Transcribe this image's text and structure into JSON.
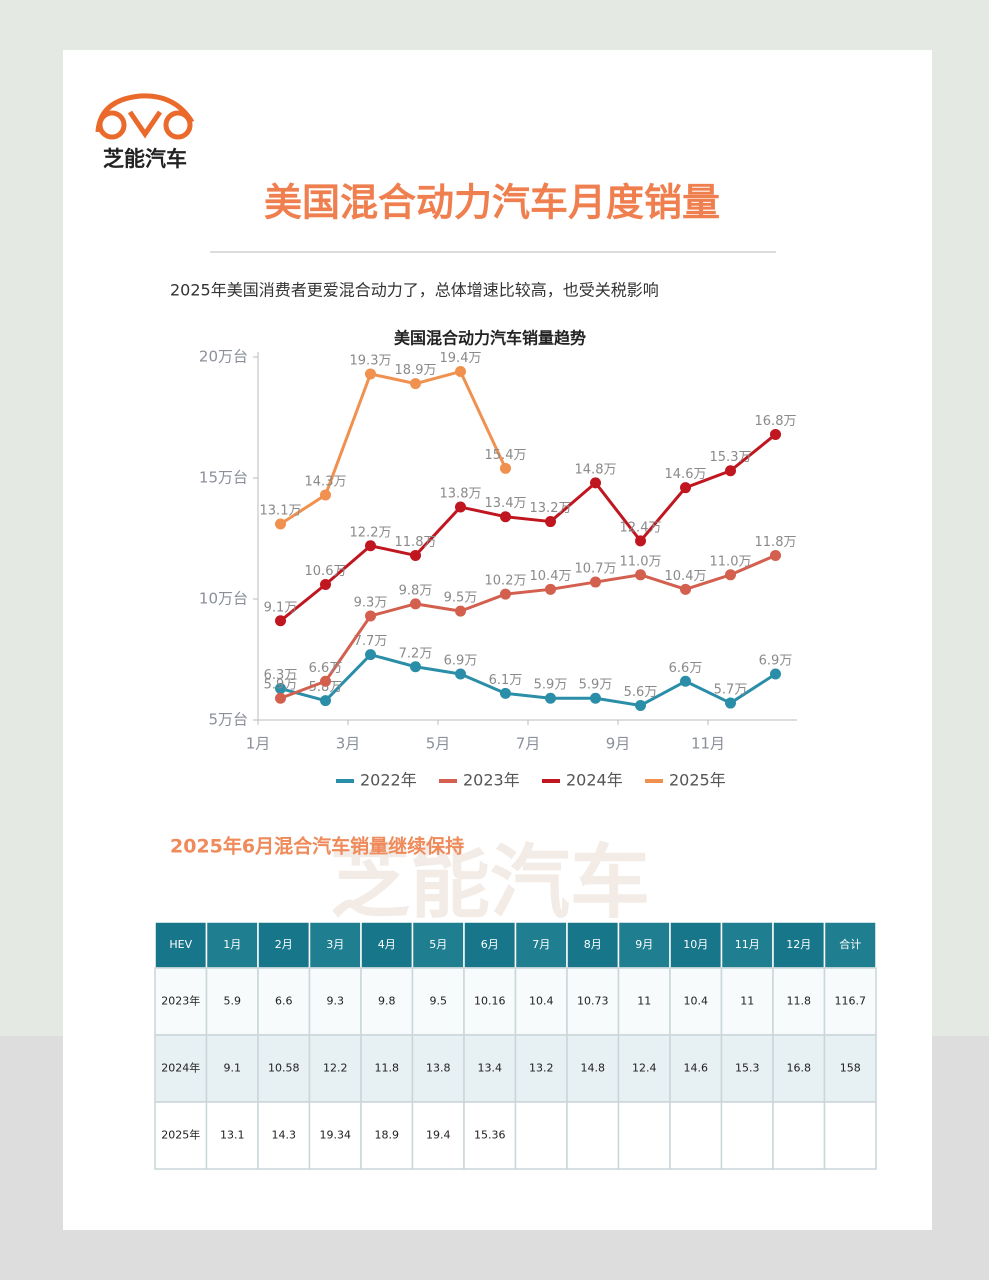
{
  "brand": "芝能汽车",
  "title": "美国混合动力汽车月度销量",
  "subtitle": "2025年美国消费者更爱混合动力了，总体增速比较高，也受关税影响",
  "chart_data": {
    "type": "line",
    "title": "美国混合动力汽车销量趋势",
    "categories": [
      "1月",
      null,
      "3月",
      null,
      "5月",
      null,
      "7月",
      null,
      "9月",
      null,
      "11月",
      null
    ],
    "ylim": [
      5,
      20
    ],
    "yticks": [
      {
        "value": 5,
        "label": "5万台"
      },
      {
        "value": 10,
        "label": "10万台"
      },
      {
        "value": 15,
        "label": "15万台"
      },
      {
        "value": 20,
        "label": "20万台"
      }
    ],
    "legend": "bottom",
    "series": [
      {
        "name": "2022年",
        "color": "#2b8ea8",
        "values": [
          6.3,
          5.8,
          7.7,
          7.2,
          6.9,
          6.1,
          5.9,
          5.9,
          5.6,
          6.6,
          5.7,
          6.9
        ],
        "value_labels": [
          "6.3万",
          "5.8万",
          "7.7万",
          "7.2万",
          "6.9万",
          "6.1万",
          "5.9万",
          "5.9万",
          "5.6万",
          "6.6万",
          "5.7万",
          "6.9万"
        ]
      },
      {
        "name": "2023年",
        "color": "#d3604f",
        "values": [
          5.9,
          6.6,
          9.3,
          9.8,
          9.5,
          10.2,
          10.4,
          10.7,
          11.0,
          10.4,
          11.0,
          11.8
        ],
        "value_labels": [
          "5.9万",
          "6.6万",
          "9.3万",
          "9.8万",
          "9.5万",
          "10.2万",
          "10.4万",
          "10.7万",
          "11.0万",
          "10.4万",
          "11.0万",
          "11.8万"
        ]
      },
      {
        "name": "2024年",
        "color": "#c0161f",
        "values": [
          9.1,
          10.6,
          12.2,
          11.8,
          13.8,
          13.4,
          13.2,
          14.8,
          12.4,
          14.6,
          15.3,
          16.8
        ],
        "value_labels": [
          "9.1万",
          "10.6万",
          "12.2万",
          "11.8万",
          "13.8万",
          "13.4万",
          "13.2万",
          "14.8万",
          "12.4万",
          "14.6万",
          "15.3万",
          "16.8万"
        ]
      },
      {
        "name": "2025年",
        "color": "#f0914f",
        "values": [
          13.1,
          14.3,
          19.3,
          18.9,
          19.4,
          15.4,
          null,
          null,
          null,
          null,
          null,
          null
        ],
        "value_labels": [
          "13.1万",
          "14.3万",
          "19.3万",
          "18.9万",
          "19.4万",
          "15.4万",
          null,
          null,
          null,
          null,
          null,
          null
        ]
      }
    ]
  },
  "section_title": "2025年6月混合汽车销量继续保持",
  "table": {
    "header": [
      "HEV",
      "1月",
      "2月",
      "3月",
      "4月",
      "5月",
      "6月",
      "7月",
      "8月",
      "9月",
      "10月",
      "11月",
      "12月",
      "合计"
    ],
    "rows": [
      [
        "2023年",
        5.9,
        6.6,
        9.3,
        9.8,
        9.5,
        10.16,
        10.4,
        10.73,
        11,
        10.4,
        11,
        11.8,
        116.7
      ],
      [
        "2024年",
        9.1,
        10.58,
        12.2,
        11.8,
        13.8,
        13.4,
        13.2,
        14.8,
        12.4,
        14.6,
        15.3,
        16.8,
        158
      ],
      [
        "2025年",
        13.1,
        14.3,
        19.34,
        18.9,
        19.4,
        15.36
      ]
    ]
  }
}
